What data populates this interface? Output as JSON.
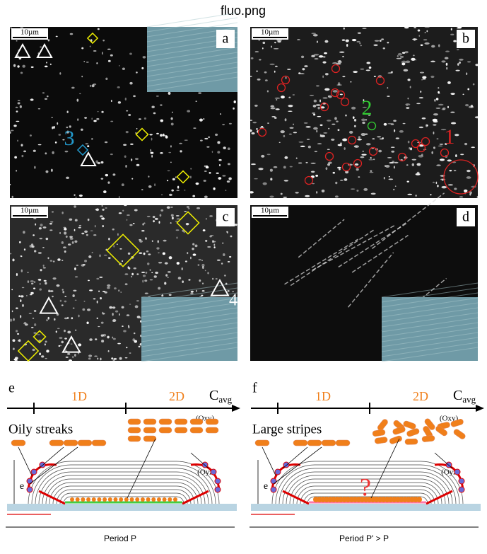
{
  "title": "fluo.png",
  "panels": [
    {
      "label": "a",
      "scale": "10µm",
      "annotations": [
        "3"
      ]
    },
    {
      "label": "b",
      "scale": "10µm",
      "annotations": [
        "2",
        "1"
      ]
    },
    {
      "label": "c",
      "scale": "10µm",
      "annotations": [
        "4"
      ]
    },
    {
      "label": "d",
      "scale": "10µm",
      "annotations": []
    }
  ],
  "schemes": [
    {
      "label": "e",
      "ticks": [
        "1D",
        "2D"
      ],
      "axis_label": "C",
      "axis_label_sub": "avg",
      "phase": "Oily streaks",
      "oxy": "(Oxy)",
      "oyz": "(Oyz)",
      "thickness": "e",
      "period": "Period P"
    },
    {
      "label": "f",
      "ticks": [
        "1D",
        "2D"
      ],
      "axis_label": "C",
      "axis_label_sub": "avg",
      "phase": "Large stripes",
      "oxy": "(Oxy)",
      "oyz": "(Oyz)",
      "thickness": "e",
      "period": "Period P' > P",
      "question": "?"
    }
  ]
}
